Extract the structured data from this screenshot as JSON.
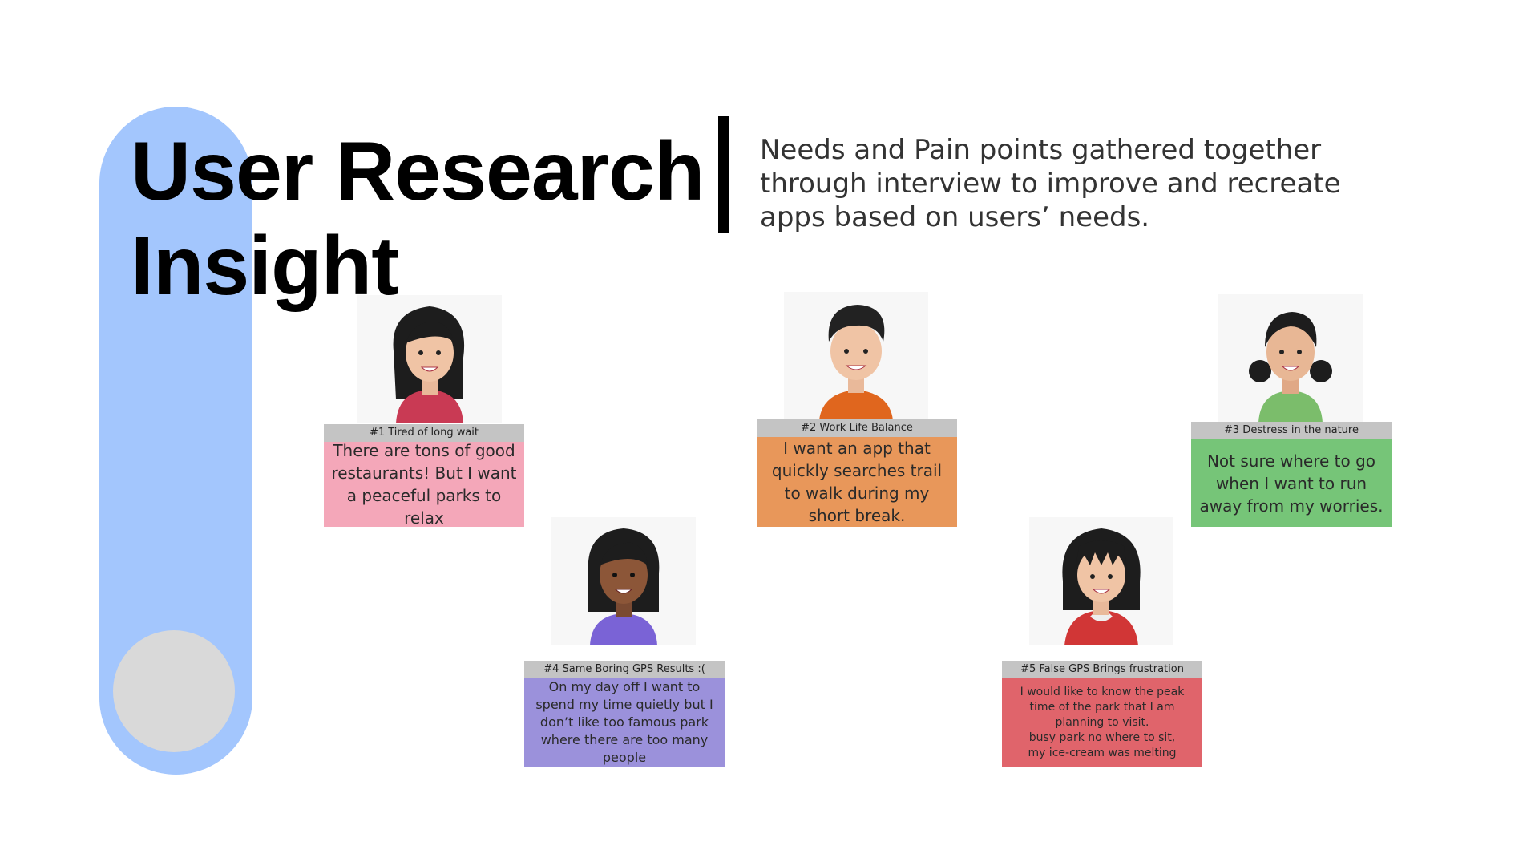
{
  "slide": {
    "title_line1": "User Research",
    "title_line2": "Insight",
    "description": "Needs and Pain points gathered together through interview to improve and recreate apps based on users’ needs."
  },
  "colors": {
    "accent_blue": "#a3c6fd",
    "knob_gray": "#d9d9d9",
    "tag_gray": "#c4c4c4",
    "note_pink": "#f4a7b9",
    "note_orange": "#e8975a",
    "note_green": "#76c578",
    "note_purple": "#9b91db",
    "note_red": "#e0646b"
  },
  "personas": [
    {
      "tag": "#1 Tired of long wait",
      "quote": "There are tons of good restaurants! But I want a peaceful parks to relax",
      "avatar_icon": "woman-red-top-avatar"
    },
    {
      "tag": "#2 Work Life Balance",
      "quote": "I want an app that quickly searches trail to walk during my short break.",
      "avatar_icon": "man-orange-shirt-avatar"
    },
    {
      "tag": "#3 Destress in the nature",
      "quote": "Not sure where to go when I want to run away from my worries.",
      "avatar_icon": "woman-green-top-avatar"
    },
    {
      "tag": "#4  Same Boring GPS Results :(",
      "quote": "On my day off I want to spend my time quietly but I don’t like too famous park where there are too many people",
      "avatar_icon": "woman-purple-top-avatar"
    },
    {
      "tag": "#5 False GPS Brings frustration",
      "quote": "I would like to know the peak time of the park that I am planning to visit.\nbusy park no where to sit,\nmy ice-cream was melting",
      "avatar_icon": "woman-red-hoodie-avatar"
    }
  ]
}
